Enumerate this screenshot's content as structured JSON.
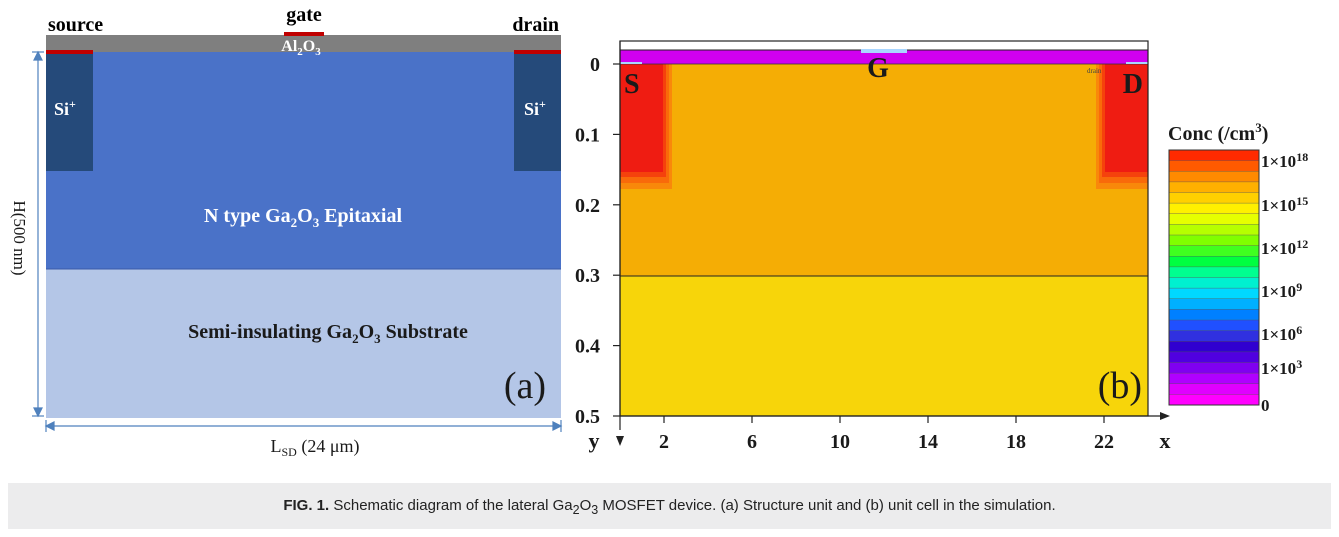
{
  "panel_a": {
    "source_label": "source",
    "gate_label": "gate",
    "drain_label": "drain",
    "oxide_label_main": "Al",
    "oxide_sub1": "2",
    "oxide_mid": "O",
    "oxide_sub2": "3",
    "si_left": "Si",
    "si_right": "Si",
    "si_sup": "+",
    "epi_pre": "N type Ga",
    "epi_sub1": "2",
    "epi_mid": "O",
    "epi_sub2": "3",
    "epi_post": " Epitaxial",
    "sub_pre": "Semi-insulating Ga",
    "sub_sub1": "2",
    "sub_mid": "O",
    "sub_sub2": "3",
    "sub_post": " Substrate",
    "height_label": "H(500 nm)",
    "length_main": "L",
    "length_sub": "SD",
    "length_value": " (24 μm)",
    "panel_tag": "(a)",
    "colors": {
      "oxide": "#7f7f7f",
      "contact": "#c00000",
      "epi": "#4a72c8",
      "si": "#254a7a",
      "substrate": "#b4c6e7",
      "dim_line": "#4f81bd"
    }
  },
  "panel_b": {
    "y_ticks": [
      "0",
      "0.1",
      "0.2",
      "0.3",
      "0.4",
      "0.5"
    ],
    "x_ticks": [
      "2",
      "6",
      "10",
      "14",
      "18",
      "22"
    ],
    "x_axis_label": "x",
    "y_axis_label": "y",
    "source_letter": "S",
    "gate_letter": "G",
    "drain_letter": "D",
    "drain_small": "drain",
    "panel_tag": "(b)",
    "colors": {
      "epi": "#f5ad05",
      "substrate": "#f7d50a",
      "implant": "#ef1c12",
      "oxide": "#d100f0",
      "gate_metal": "#a9d6ff"
    }
  },
  "colorbar": {
    "title_main": "Conc (/cm",
    "title_sup": "3",
    "title_end": ")",
    "labels": [
      {
        "base": "1×10",
        "exp": "18"
      },
      {
        "base": "1×10",
        "exp": "15"
      },
      {
        "base": "1×10",
        "exp": "12"
      },
      {
        "base": "1×10",
        "exp": "9"
      },
      {
        "base": "1×10",
        "exp": "6"
      },
      {
        "base": "1×10",
        "exp": "3"
      },
      {
        "base": "0",
        "exp": ""
      }
    ],
    "colors_top_to_bottom": [
      "#ff2a00",
      "#ff5a00",
      "#ff8a00",
      "#ffb000",
      "#ffd000",
      "#fff000",
      "#e6ff00",
      "#b6ff00",
      "#80ff00",
      "#40ff20",
      "#00ff40",
      "#00ff90",
      "#00f0d0",
      "#00d8ff",
      "#00b0ff",
      "#0080ff",
      "#2050ff",
      "#3030e0",
      "#3000d0",
      "#5000e0",
      "#8000f0",
      "#b000ff",
      "#e000ff",
      "#ff00ff"
    ]
  },
  "caption": {
    "label": "FIG. 1.",
    "text_pre": "  Schematic diagram of the lateral Ga",
    "sub1": "2",
    "text_mid": "O",
    "sub2": "3",
    "text_post": " MOSFET device. (a) Structure unit and (b) unit cell in the simulation."
  }
}
